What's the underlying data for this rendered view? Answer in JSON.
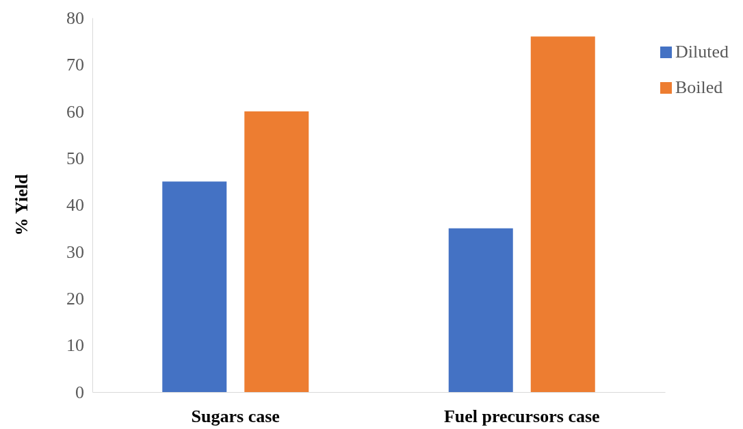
{
  "chart_data": {
    "type": "bar",
    "ylabel": "% Yield",
    "categories": [
      "Sugars case",
      "Fuel precursors case"
    ],
    "series": [
      {
        "name": "Diluted",
        "color": "#4472c4",
        "values": [
          45,
          35
        ]
      },
      {
        "name": "Boiled",
        "color": "#ed7d31",
        "values": [
          60,
          76
        ]
      }
    ],
    "ylim": [
      0,
      80
    ],
    "yticks": [
      0,
      10,
      20,
      30,
      40,
      50,
      60,
      70,
      80
    ],
    "grid": false,
    "legend": "right"
  }
}
